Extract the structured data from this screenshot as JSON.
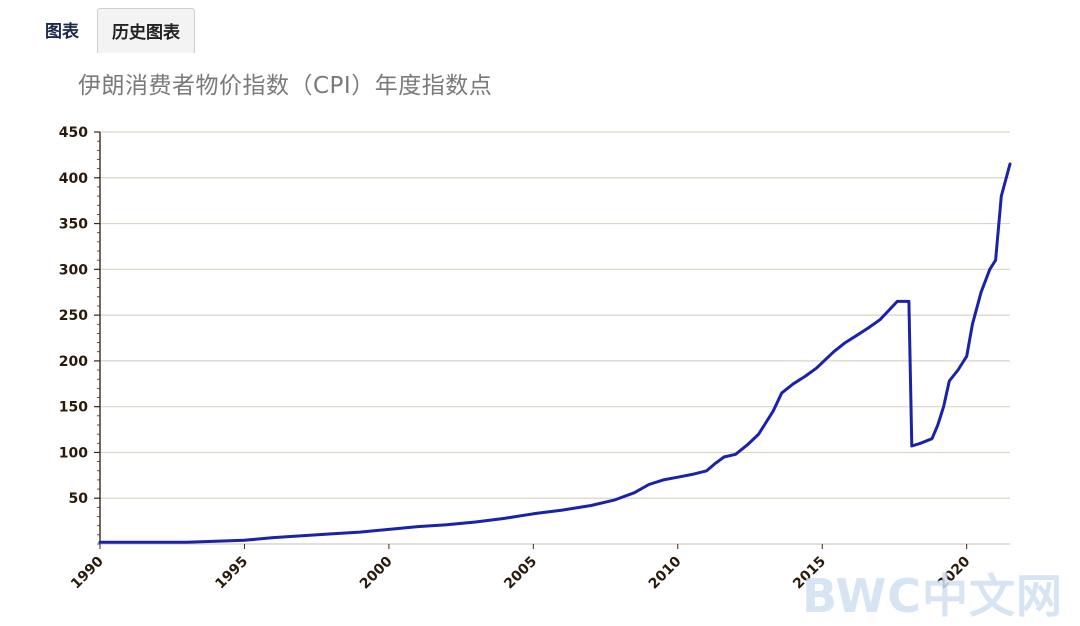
{
  "tabs": [
    {
      "label": "图表",
      "active": false
    },
    {
      "label": "历史图表",
      "active": true
    }
  ],
  "watermark": "BWC中文网",
  "colors": {
    "line": "#1a22a8",
    "grid": "#d9d6c8",
    "axis": "#3a2a1a"
  },
  "chart_data": {
    "type": "line",
    "title": "伊朗消费者物价指数（CPI）年度指数点",
    "xlabel": "",
    "ylabel": "",
    "xlim": [
      1990,
      2021.5
    ],
    "ylim": [
      0,
      450
    ],
    "yticks": [
      50,
      100,
      150,
      200,
      250,
      300,
      350,
      400,
      450
    ],
    "xticks": [
      1990,
      1995,
      2000,
      2005,
      2010,
      2015,
      2020
    ],
    "grid": true,
    "series": [
      {
        "x": [
          1990,
          1992,
          1993,
          1994,
          1995,
          1996,
          1997,
          1998,
          1999,
          2000,
          2001,
          2002,
          2003,
          2004,
          2005,
          2006,
          2007,
          2007.8,
          2008.5,
          2009,
          2009.5,
          2010,
          2010.5,
          2011,
          2011.3,
          2011.6,
          2012,
          2012.4,
          2012.8,
          2013,
          2013.3,
          2013.6,
          2014,
          2014.4,
          2014.8,
          2015,
          2015.4,
          2015.8,
          2016.2,
          2016.6,
          2017,
          2017.3,
          2017.6,
          2018,
          2018.1,
          2018.4,
          2018.8,
          2019,
          2019.2,
          2019.4,
          2019.7,
          2020,
          2020.2,
          2020.5,
          2020.8,
          2021,
          2021.2,
          2021.5
        ],
        "y": [
          2,
          2,
          2,
          3,
          4,
          7,
          9,
          11,
          13,
          16,
          19,
          21,
          24,
          28,
          33,
          37,
          42,
          48,
          56,
          65,
          70,
          73,
          76,
          80,
          88,
          95,
          98,
          108,
          120,
          130,
          145,
          165,
          175,
          183,
          192,
          198,
          210,
          220,
          228,
          236,
          245,
          255,
          265,
          265,
          107,
          110,
          115,
          130,
          150,
          178,
          190,
          205,
          240,
          275,
          300,
          310,
          380,
          415
        ]
      }
    ]
  }
}
